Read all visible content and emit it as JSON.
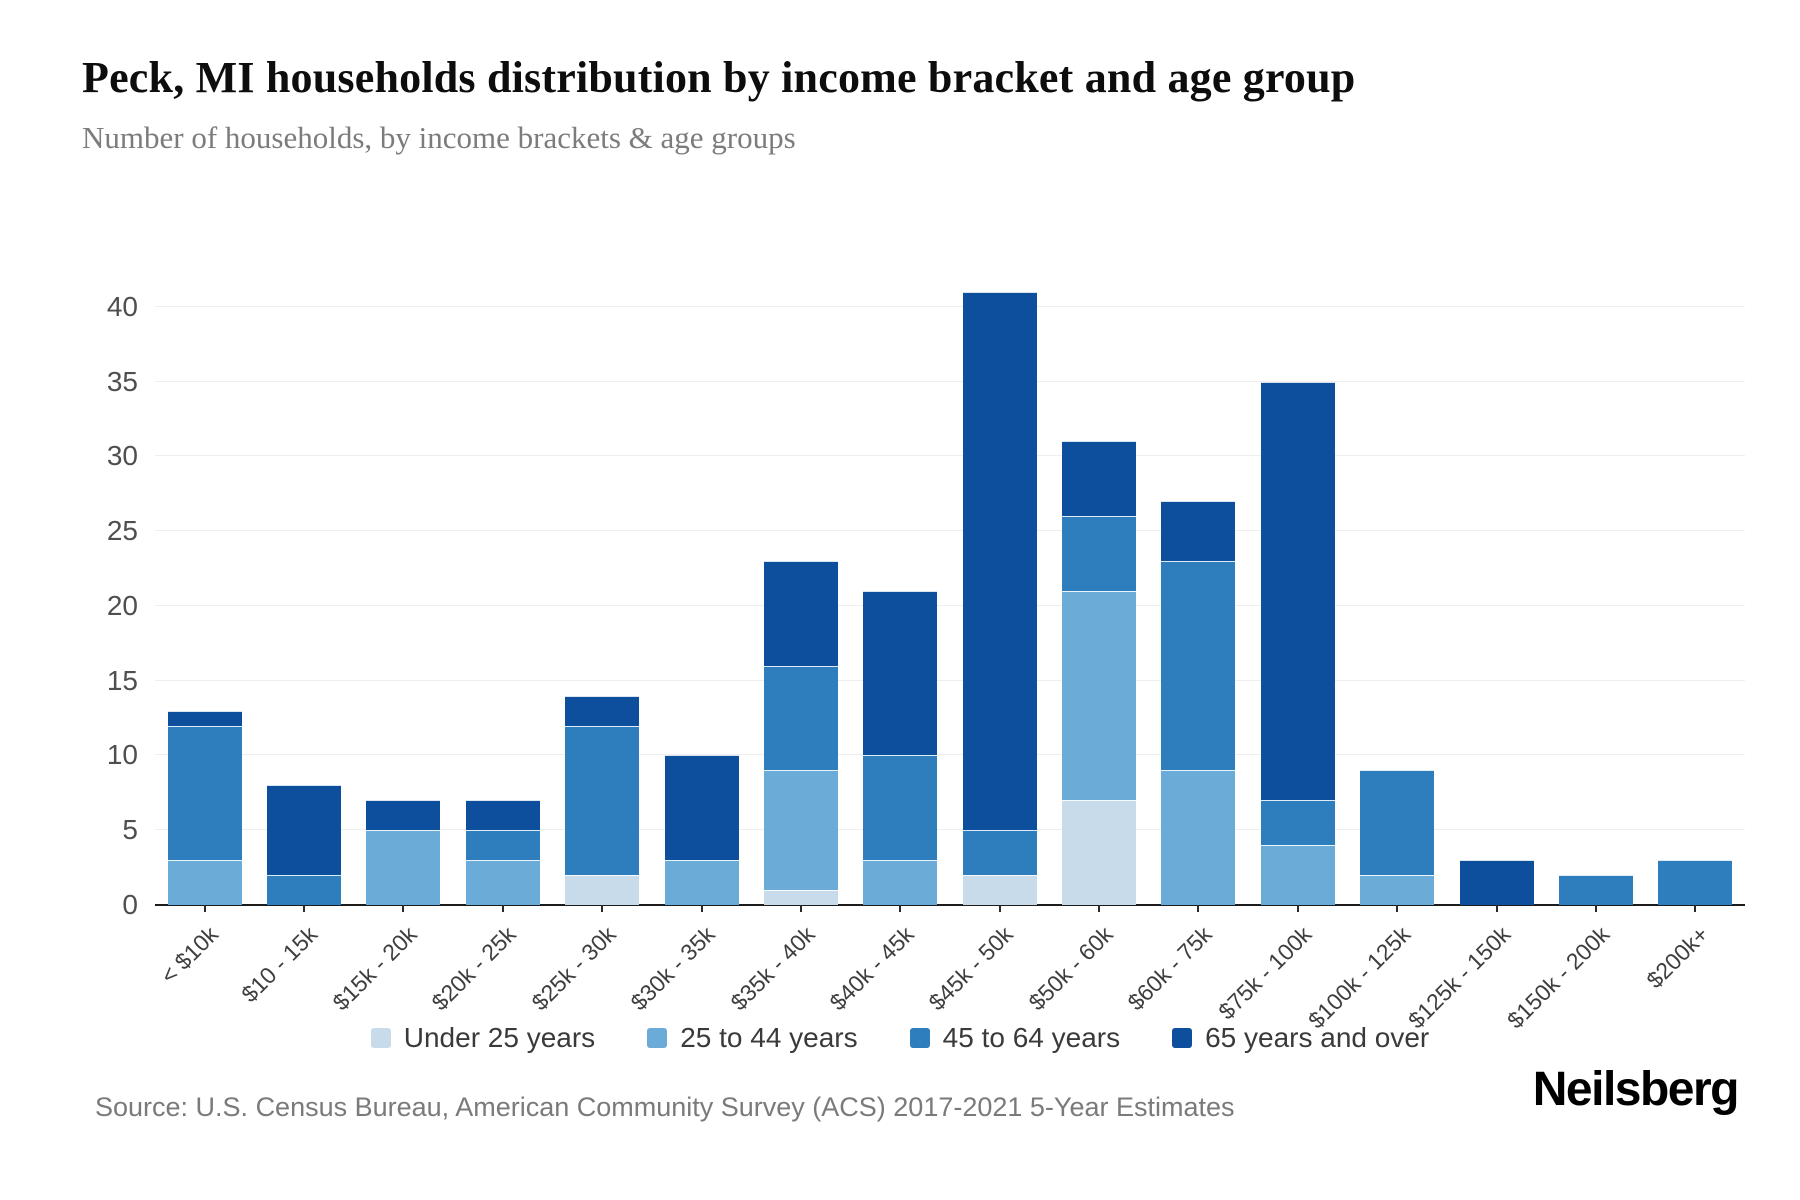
{
  "header": {
    "title": "Peck, MI households distribution by income bracket and age group",
    "subtitle": "Number of households, by income brackets & age groups"
  },
  "source": {
    "text": "Source: U.S. Census Bureau, American Community Survey (ACS) 2017-2021 5-Year Estimates"
  },
  "brand": {
    "logo_text": "Neilsberg"
  },
  "chart_data": {
    "type": "bar",
    "stacked": true,
    "title": "Peck, MI households distribution by income bracket and age group",
    "subtitle": "Number of households, by income brackets & age groups",
    "xlabel": "",
    "ylabel": "",
    "grid": true,
    "legend_position": "bottom",
    "background": "#ffffff",
    "gridline_color": "#eeeeee",
    "y_ticks": [
      0,
      5,
      10,
      15,
      20,
      25,
      30,
      35,
      40
    ],
    "ylim": [
      0,
      43.8
    ],
    "categories": [
      "< $10k",
      "$10 - 15k",
      "$15k - 20k",
      "$20k - 25k",
      "$25k - 30k",
      "$30k - 35k",
      "$35k - 40k",
      "$40k - 45k",
      "$45k - 50k",
      "$50k - 60k",
      "$60k - 75k",
      "$75k - 100k",
      "$100k - 125k",
      "$125k - 150k",
      "$150k - 200k",
      "$200k+"
    ],
    "series": [
      {
        "name": "Under 25 years",
        "color": "#c7dbeb",
        "values": [
          0,
          0,
          0,
          0,
          2,
          0,
          1,
          0,
          2,
          7,
          0,
          0,
          0,
          0,
          0,
          0
        ]
      },
      {
        "name": "25 to 44 years",
        "color": "#6aabd8",
        "values": [
          3,
          0,
          5,
          3,
          0,
          3,
          8,
          3,
          0,
          14,
          9,
          4,
          2,
          0,
          0,
          0
        ]
      },
      {
        "name": "45 to 64 years",
        "color": "#2e7dbd",
        "values": [
          9,
          2,
          0,
          2,
          10,
          0,
          7,
          7,
          3,
          5,
          14,
          3,
          7,
          0,
          2,
          3
        ]
      },
      {
        "name": "65 years and over",
        "color": "#0d4f9c",
        "values": [
          1,
          6,
          2,
          2,
          2,
          7,
          7,
          11,
          36,
          5,
          4,
          28,
          0,
          3,
          0,
          0
        ]
      }
    ],
    "totals": [
      13,
      8,
      7,
      7,
      14,
      10,
      23,
      21,
      41,
      31,
      27,
      35,
      9,
      3,
      2,
      3
    ]
  }
}
